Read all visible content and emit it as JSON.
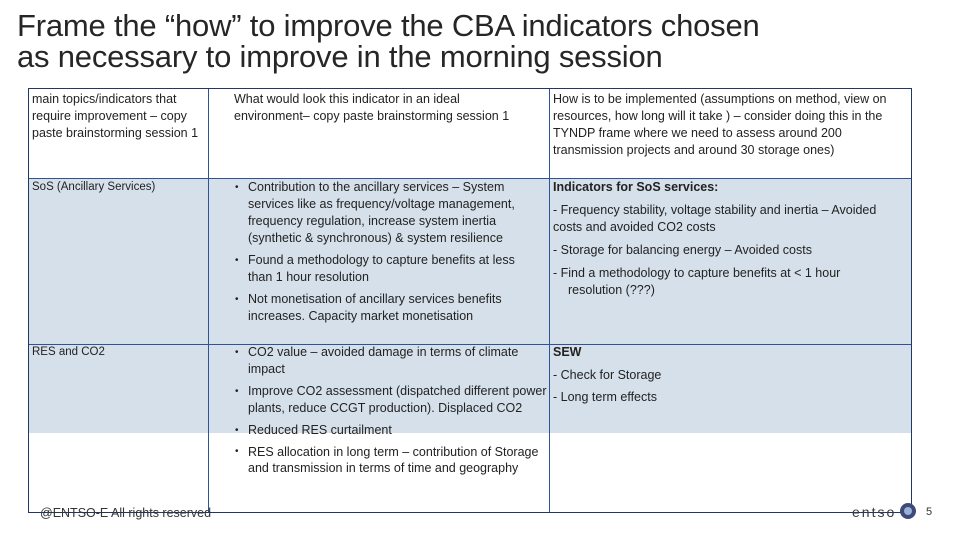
{
  "title": {
    "line1": "Frame the “how” to improve the CBA indicators chosen",
    "line2": "as necessary to improve in the morning session"
  },
  "headers": {
    "col1": "main topics/indicators that require improvement – copy paste brainstorming session 1",
    "col2": "What would look this indicator in an ideal environment– copy paste brainstorming session 1",
    "col3": "How is to be implemented (assumptions on method, view on resources, how long will it take ) – consider doing this in the TYNDP frame where we need to assess around 200 transmission projects and around 30 storage ones)"
  },
  "rows": [
    {
      "topic": "SoS (Ancillary Services)",
      "ideal": [
        "Contribution to the ancillary services – System services like as frequency/voltage management, frequency regulation, increase system  inertia (synthetic & synchronous) & system resilience",
        "Found a methodology to capture benefits at less than 1 hour resolution",
        "Not monetisation of ancillary services benefits increases. Capacity market monetisation"
      ],
      "how_title": "Indicators for SoS services:",
      "how": [
        "- Frequency stability, voltage stability and inertia – Avoided costs and avoided CO2 costs",
        "- Storage for balancing energy – Avoided costs",
        "-  Find a methodology to capture benefits at < 1 hour resolution (???)"
      ]
    },
    {
      "topic": "RES and CO2",
      "ideal": [
        "CO2 value – avoided damage in terms of climate impact",
        "Improve CO2 assessment (dispatched different power plants, reduce CCGT production). Displaced CO2",
        "Reduced RES curtailment",
        "RES allocation in long term – contribution of Storage and transmission in terms of time and geography"
      ],
      "how_title": "SEW",
      "how": [
        "- Check for Storage",
        "- Long term effects"
      ]
    }
  ],
  "footer": {
    "copyright": "@ENTSO-E All rights reserved",
    "logo": "entso",
    "page": "5"
  },
  "colors": {
    "row_fill": "#d6e0ea",
    "border": "#2f5496"
  }
}
